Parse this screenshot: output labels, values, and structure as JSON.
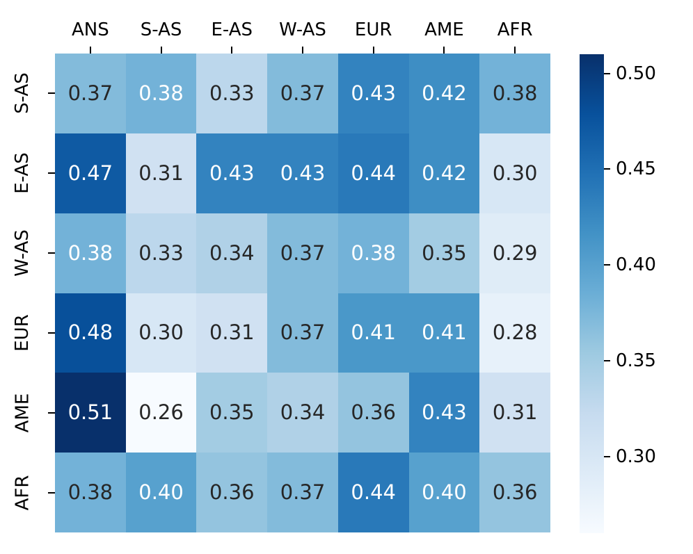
{
  "chart_data": {
    "type": "heatmap",
    "title": "",
    "xlabel": "",
    "ylabel": "",
    "x_categories": [
      "ANS",
      "S-AS",
      "E-AS",
      "W-AS",
      "EUR",
      "AME",
      "AFR"
    ],
    "y_categories": [
      "S-AS",
      "E-AS",
      "W-AS",
      "EUR",
      "AME",
      "AFR"
    ],
    "values": [
      [
        0.37,
        0.38,
        0.33,
        0.37,
        0.43,
        0.42,
        0.38
      ],
      [
        0.47,
        0.31,
        0.43,
        0.43,
        0.44,
        0.42,
        0.3
      ],
      [
        0.38,
        0.33,
        0.34,
        0.37,
        0.38,
        0.35,
        0.29
      ],
      [
        0.48,
        0.3,
        0.31,
        0.37,
        0.41,
        0.41,
        0.28
      ],
      [
        0.51,
        0.26,
        0.35,
        0.34,
        0.36,
        0.43,
        0.31
      ],
      [
        0.38,
        0.4,
        0.36,
        0.37,
        0.44,
        0.4,
        0.36
      ]
    ],
    "annot_colors": [
      [
        "dark",
        "white",
        "dark",
        "dark",
        "white",
        "white",
        "dark"
      ],
      [
        "white",
        "dark",
        "white",
        "white",
        "white",
        "white",
        "dark"
      ],
      [
        "white",
        "dark",
        "dark",
        "dark",
        "white",
        "dark",
        "dark"
      ],
      [
        "white",
        "dark",
        "dark",
        "dark",
        "white",
        "white",
        "dark"
      ],
      [
        "white",
        "dark",
        "dark",
        "dark",
        "dark",
        "white",
        "dark"
      ],
      [
        "dark",
        "white",
        "dark",
        "dark",
        "white",
        "white",
        "dark"
      ]
    ],
    "value_decimals": 2,
    "vmin": 0.26,
    "vmax": 0.51,
    "colormap": {
      "name": "Blues",
      "anchors": [
        {
          "pos": 0.0,
          "color": "#f7fbff"
        },
        {
          "pos": 0.125,
          "color": "#deebf7"
        },
        {
          "pos": 0.25,
          "color": "#c6dbef"
        },
        {
          "pos": 0.375,
          "color": "#9ecae1"
        },
        {
          "pos": 0.5,
          "color": "#6baed6"
        },
        {
          "pos": 0.625,
          "color": "#4292c6"
        },
        {
          "pos": 0.75,
          "color": "#2171b5"
        },
        {
          "pos": 0.875,
          "color": "#08519c"
        },
        {
          "pos": 1.0,
          "color": "#08306b"
        }
      ]
    },
    "colorbar": {
      "position": "right",
      "ticks": [
        0.5,
        0.45,
        0.4,
        0.35,
        0.3
      ]
    },
    "grid": false,
    "annot_text_dark": "#262626",
    "annot_text_light": "#ffffff",
    "tick_color": "#000000",
    "background": "#ffffff"
  }
}
